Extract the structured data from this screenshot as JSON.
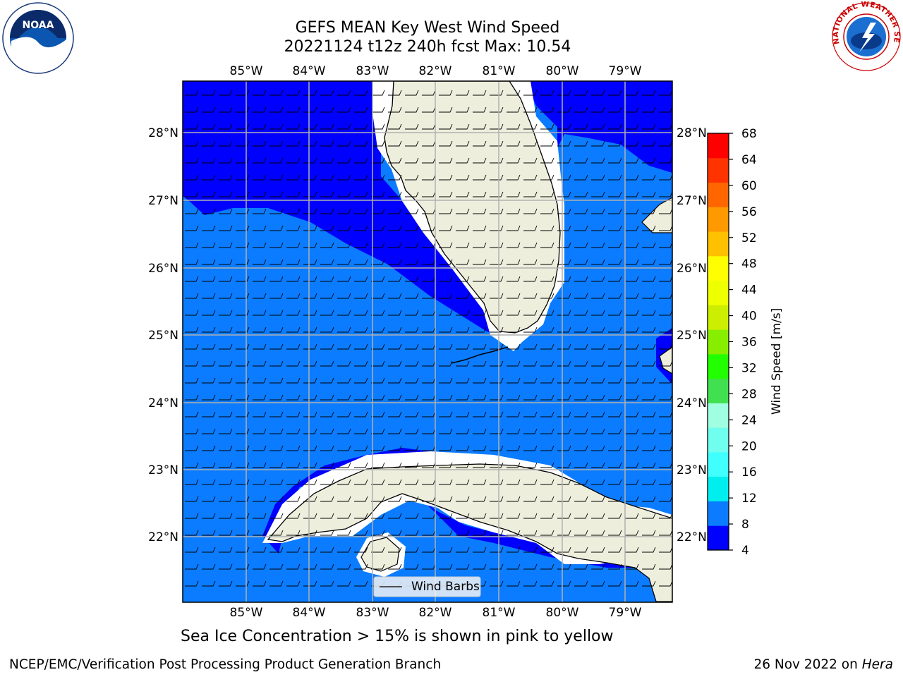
{
  "header": {
    "title_line1": "GEFS MEAN Key West Wind Speed",
    "title_line2": "20221124 t12z 240h fcst   Max: 10.54"
  },
  "logos": {
    "noaa_text": "NOAA",
    "nws_text": "NATIONAL WEATHER SERVICE"
  },
  "map": {
    "lon_labels": [
      "85°W",
      "84°W",
      "83°W",
      "82°W",
      "81°W",
      "80°W",
      "79°W"
    ],
    "lat_labels": [
      "28°N",
      "27°N",
      "26°N",
      "25°N",
      "24°N",
      "23°N",
      "22°N"
    ],
    "legend_label": "Wind Barbs",
    "colors": {
      "ocean_dark": "#0000ff",
      "ocean_light": "#0b7cff",
      "land": "#eeeedd",
      "grid": "#b0b0b0"
    }
  },
  "colorbar": {
    "label": "Wind Speed [m/s]",
    "ticks": [
      "4",
      "8",
      "12",
      "16",
      "20",
      "24",
      "28",
      "32",
      "36",
      "40",
      "44",
      "48",
      "52",
      "56",
      "60",
      "64",
      "68"
    ],
    "colors": [
      "#0000ff",
      "#0b7cff",
      "#00eeee",
      "#40ffff",
      "#70ffee",
      "#a0ffe0",
      "#40e050",
      "#22ff00",
      "#88ee00",
      "#ccee00",
      "#eeff00",
      "#ffff00",
      "#ffc000",
      "#ff9900",
      "#ff6600",
      "#ff3300",
      "#ff0000"
    ]
  },
  "caption": "Sea Ice Concentration > 15% is shown in pink to yellow",
  "footer": {
    "left": "NCEP/EMC/Verification Post Processing Product Generation Branch",
    "right_date": "26 Nov 2022 on",
    "right_host": "Hera"
  }
}
